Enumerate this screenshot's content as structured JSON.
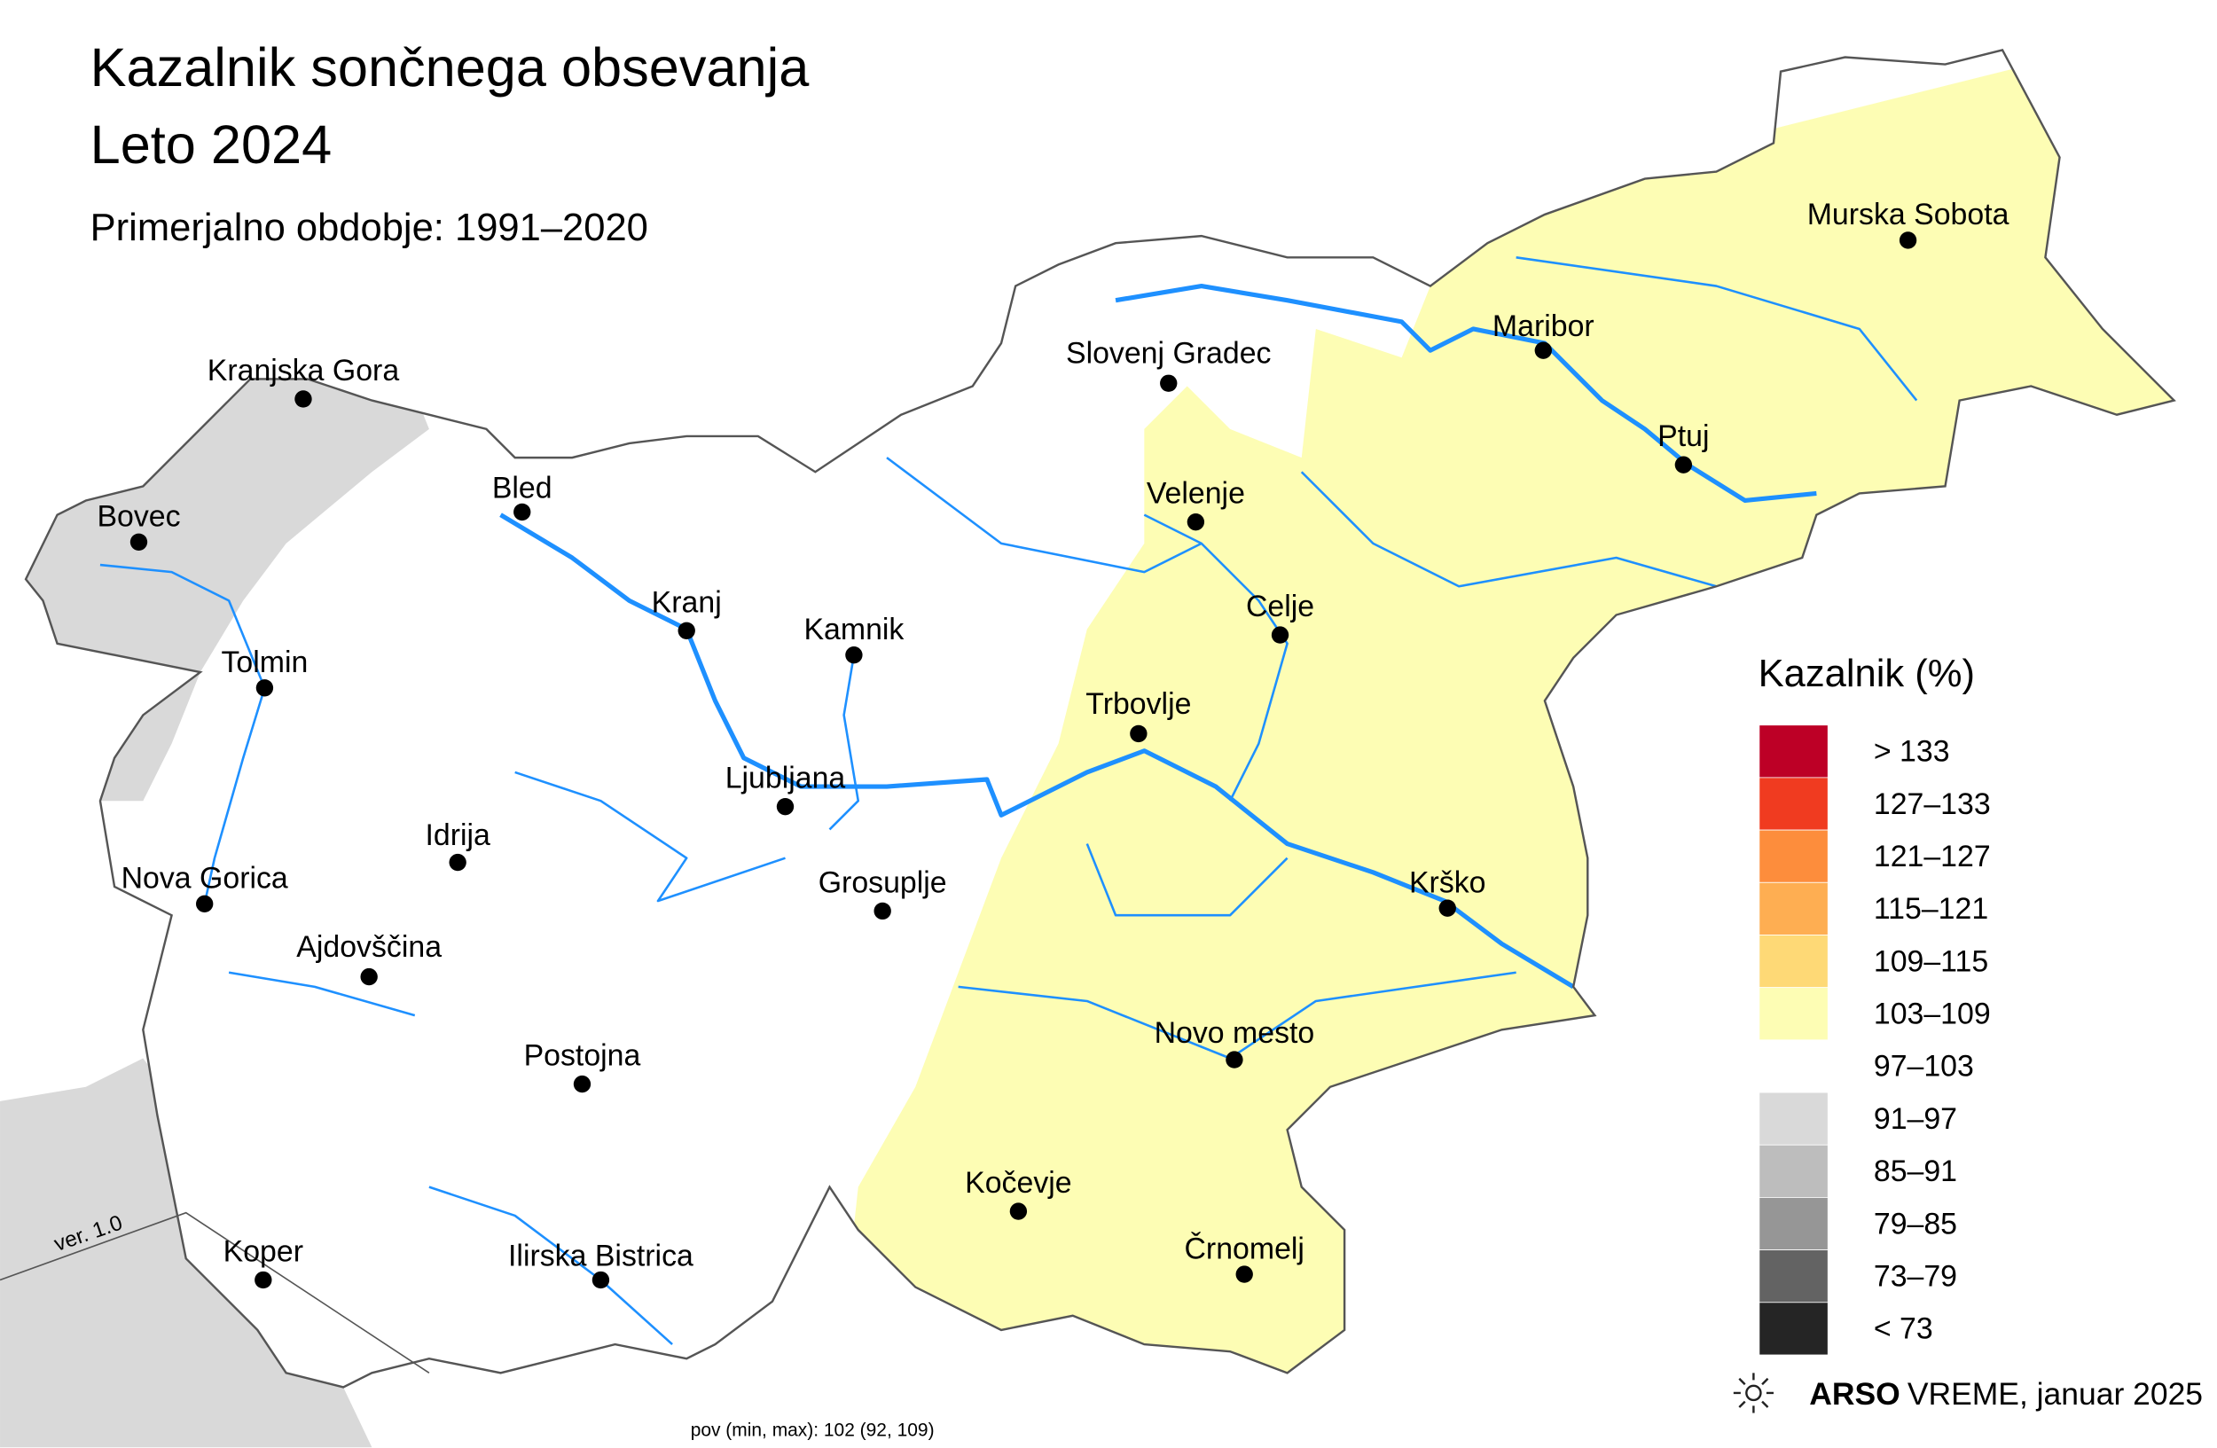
{
  "header": {
    "title_line1": "Kazalnik sončnega obsevanja",
    "title_line2": "Leto 2024",
    "subtitle": "Primerjalno obdobje: 1991–2020"
  },
  "cities": [
    "Kranjska Gora",
    "Bovec",
    "Bled",
    "Kranj",
    "Kamnik",
    "Tolmin",
    "Ljubljana",
    "Idrija",
    "Nova Gorica",
    "Grosuplje",
    "Ajdovščina",
    "Postojna",
    "Koper",
    "Ilirska Bistrica",
    "Kočevje",
    "Črnomelj",
    "Novo mesto",
    "Krško",
    "Trbovlje",
    "Celje",
    "Velenje",
    "Slovenj Gradec",
    "Maribor",
    "Ptuj",
    "Murska Sobota"
  ],
  "legend": {
    "title": "Kazalnik (%)",
    "items": [
      {
        "label": "> 133",
        "color": "#bd0026"
      },
      {
        "label": "127–133",
        "color": "#f03b20"
      },
      {
        "label": "121–127",
        "color": "#fd8d3c"
      },
      {
        "label": "115–121",
        "color": "#feae52"
      },
      {
        "label": "109–115",
        "color": "#fed976"
      },
      {
        "label": "103–109",
        "color": "#fdfdb4"
      },
      {
        "label": "97–103",
        "color": "#ffffff"
      },
      {
        "label": "91–97",
        "color": "#d9d9d9"
      },
      {
        "label": "85–91",
        "color": "#bdbdbd"
      },
      {
        "label": "79–85",
        "color": "#969696"
      },
      {
        "label": "73–79",
        "color": "#636363"
      },
      {
        "label": "< 73",
        "color": "#252525"
      }
    ]
  },
  "footer": {
    "brand_bold": "ARSO",
    "brand": "VREME",
    "date": ", januar 2025",
    "stats": "pov (min, max): 102 (92, 109)",
    "version": "ver. 1.0"
  }
}
